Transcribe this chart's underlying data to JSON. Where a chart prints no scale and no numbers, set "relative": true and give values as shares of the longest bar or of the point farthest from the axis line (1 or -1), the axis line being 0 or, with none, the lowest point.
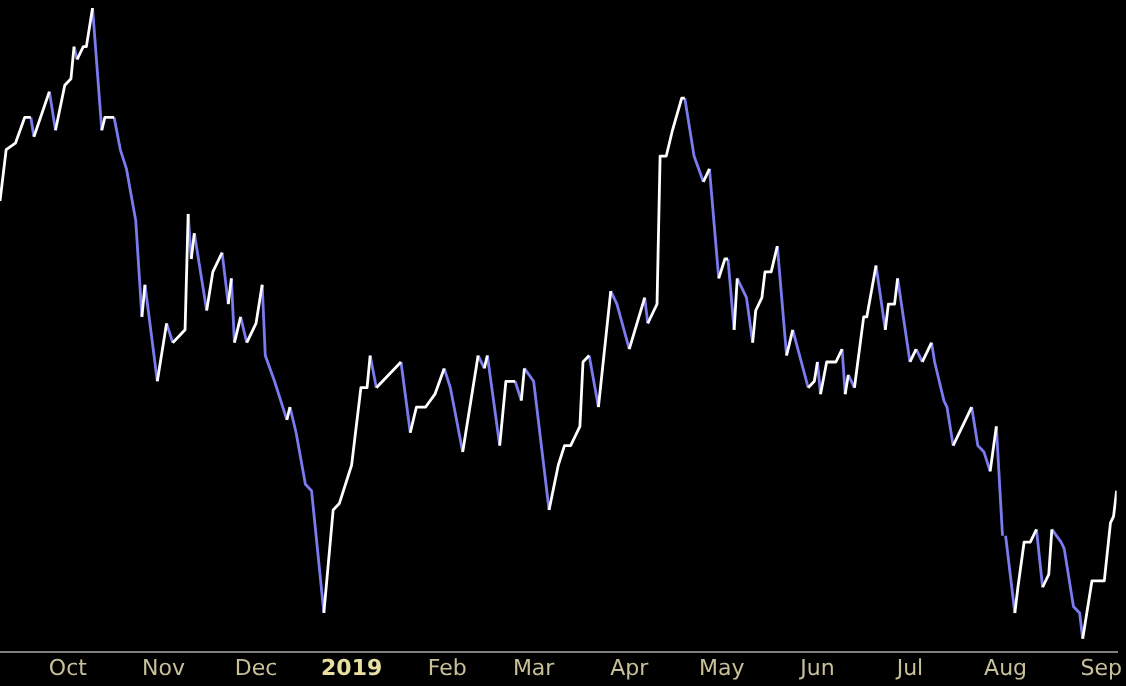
{
  "chart_data": {
    "type": "line",
    "relative": true,
    "legend": false,
    "grid": false,
    "marker": "none",
    "line_style": "solid",
    "xlim": [
      "2018-09-09",
      "2019-09-06"
    ],
    "xticks": [
      {
        "value": "2018-10-01",
        "label": "Oct"
      },
      {
        "value": "2018-11-01",
        "label": "Nov"
      },
      {
        "value": "2018-12-01",
        "label": "Dec"
      },
      {
        "value": "2019-01-01",
        "label": "2019"
      },
      {
        "value": "2019-02-01",
        "label": "Feb"
      },
      {
        "value": "2019-03-01",
        "label": "Mar"
      },
      {
        "value": "2019-04-01",
        "label": "Apr"
      },
      {
        "value": "2019-05-01",
        "label": "May"
      },
      {
        "value": "2019-06-01",
        "label": "Jun"
      },
      {
        "value": "2019-07-01",
        "label": "Jul"
      },
      {
        "value": "2019-08-01",
        "label": "Aug"
      },
      {
        "value": "2019-09-01",
        "label": "Sep"
      }
    ],
    "x": [
      "2018-09-09",
      "2018-09-11",
      "2018-09-14",
      "2018-09-17",
      "2018-09-19",
      "2018-09-20",
      "2018-09-25",
      "2018-09-27",
      "2018-09-30",
      "2018-10-02",
      "2018-10-03",
      "2018-10-04",
      "2018-10-06",
      "2018-10-07",
      "2018-10-09",
      "2018-10-12",
      "2018-10-13",
      "2018-10-16",
      "2018-10-18",
      "2018-10-20",
      "2018-10-23",
      "2018-10-25",
      "2018-10-26",
      "2018-10-30",
      "2018-11-02",
      "2018-11-04",
      "2018-11-08",
      "2018-11-09",
      "2018-11-10",
      "2018-11-11",
      "2018-11-15",
      "2018-11-17",
      "2018-11-20",
      "2018-11-22",
      "2018-11-23",
      "2018-11-24",
      "2018-11-26",
      "2018-11-28",
      "2018-12-01",
      "2018-12-03",
      "2018-12-04",
      "2018-12-07",
      "2018-12-11",
      "2018-12-12",
      "2018-12-14",
      "2018-12-17",
      "2018-12-19",
      "2018-12-23",
      "2018-12-26",
      "2018-12-28",
      "2019-01-01",
      "2019-01-04",
      "2019-01-06",
      "2019-01-07",
      "2019-01-09",
      "2019-01-17",
      "2019-01-20",
      "2019-01-22",
      "2019-01-25",
      "2019-01-28",
      "2019-01-31",
      "2019-02-02",
      "2019-02-06",
      "2019-02-11",
      "2019-02-13",
      "2019-02-14",
      "2019-02-18",
      "2019-02-20",
      "2019-02-23",
      "2019-02-25",
      "2019-02-26",
      "2019-03-01",
      "2019-03-06",
      "2019-03-09",
      "2019-03-11",
      "2019-03-13",
      "2019-03-16",
      "2019-03-17",
      "2019-03-19",
      "2019-03-22",
      "2019-03-26",
      "2019-03-28",
      "2019-04-01",
      "2019-04-06",
      "2019-04-07",
      "2019-04-09",
      "2019-04-10",
      "2019-04-11",
      "2019-04-13",
      "2019-04-15",
      "2019-04-18",
      "2019-04-19",
      "2019-04-22",
      "2019-04-25",
      "2019-04-27",
      "2019-04-30",
      "2019-05-02",
      "2019-05-03",
      "2019-05-05",
      "2019-05-06",
      "2019-05-09",
      "2019-05-11",
      "2019-05-12",
      "2019-05-14",
      "2019-05-15",
      "2019-05-17",
      "2019-05-19",
      "2019-05-22",
      "2019-05-24",
      "2019-05-29",
      "2019-05-31",
      "2019-06-01",
      "2019-06-02",
      "2019-06-04",
      "2019-06-07",
      "2019-06-09",
      "2019-06-10",
      "2019-06-11",
      "2019-06-13",
      "2019-06-16",
      "2019-06-17",
      "2019-06-20",
      "2019-06-23",
      "2019-06-24",
      "2019-06-26",
      "2019-06-27",
      "2019-07-01",
      "2019-07-03",
      "2019-07-05",
      "2019-07-08",
      "2019-07-09",
      "2019-07-12",
      "2019-07-13",
      "2019-07-15",
      "2019-07-21",
      "2019-07-23",
      "2019-07-25",
      "2019-07-27",
      "2019-07-29",
      "2019-07-31",
      "2019-08-01",
      "2019-08-04",
      "2019-08-05",
      "2019-08-07",
      "2019-08-09",
      "2019-08-11",
      "2019-08-13",
      "2019-08-15",
      "2019-08-16",
      "2019-08-19",
      "2019-08-20",
      "2019-08-23",
      "2019-08-25",
      "2019-08-26",
      "2019-08-29",
      "2019-08-31",
      "2019-09-02",
      "2019-09-04",
      "2019-09-05",
      "2019-09-06"
    ],
    "series": [
      {
        "color": "#ffffff",
        "values": [
          0.7,
          0.78,
          0.79,
          0.83,
          0.83,
          0.8,
          0.87,
          0.81,
          0.88,
          0.89,
          0.94,
          0.92,
          0.94,
          0.94,
          1.0,
          0.81,
          0.83,
          0.83,
          null,
          null,
          null,
          0.52,
          0.57,
          0.42,
          0.51,
          0.48,
          0.5,
          0.68,
          0.61,
          0.65,
          0.53,
          0.59,
          0.62,
          0.54,
          0.58,
          0.48,
          0.52,
          0.48,
          0.51,
          0.57,
          null,
          null,
          0.36,
          0.38,
          null,
          null,
          null,
          0.06,
          0.22,
          0.23,
          0.29,
          0.41,
          0.41,
          0.46,
          0.41,
          0.45,
          0.34,
          0.38,
          0.38,
          0.4,
          0.44,
          null,
          0.31,
          0.46,
          0.44,
          0.46,
          0.32,
          0.42,
          0.42,
          0.39,
          0.44,
          null,
          0.22,
          0.29,
          0.32,
          0.32,
          0.35,
          0.45,
          0.46,
          0.38,
          0.56,
          null,
          0.47,
          0.55,
          0.51,
          0.53,
          0.54,
          0.77,
          0.77,
          0.81,
          0.86,
          0.86,
          null,
          0.73,
          0.75,
          0.58,
          0.61,
          0.61,
          0.5,
          0.58,
          null,
          0.48,
          0.53,
          0.55,
          0.59,
          0.59,
          0.63,
          0.46,
          0.5,
          0.41,
          0.42,
          0.45,
          0.4,
          0.45,
          0.45,
          0.47,
          0.4,
          0.43,
          0.41,
          0.52,
          0.52,
          0.6,
          0.5,
          0.54,
          0.54,
          0.58,
          0.45,
          0.47,
          0.45,
          0.48,
          null,
          null,
          null,
          0.32,
          0.38,
          null,
          null,
          0.28,
          0.35,
          null,
          null,
          0.06,
          0.1,
          0.17,
          0.17,
          0.19,
          0.1,
          0.12,
          0.19,
          null,
          null,
          null,
          null,
          0.02,
          0.11,
          0.11,
          0.11,
          0.2,
          0.21,
          0.25
        ]
      },
      {
        "color": "#7b7bf0",
        "values": [
          null,
          null,
          null,
          null,
          0.83,
          0.8,
          0.87,
          0.81,
          null,
          null,
          0.94,
          0.92,
          null,
          null,
          1.0,
          0.81,
          null,
          0.83,
          0.78,
          0.75,
          0.67,
          0.52,
          0.57,
          0.42,
          0.51,
          0.48,
          null,
          0.68,
          0.61,
          0.65,
          0.53,
          null,
          0.62,
          0.54,
          0.58,
          0.48,
          0.52,
          0.48,
          null,
          0.57,
          0.46,
          0.42,
          0.36,
          0.38,
          0.34,
          0.26,
          0.25,
          0.06,
          null,
          null,
          null,
          null,
          null,
          0.46,
          0.41,
          0.45,
          0.34,
          null,
          null,
          null,
          0.44,
          0.41,
          0.31,
          0.46,
          0.44,
          0.46,
          0.32,
          null,
          0.42,
          0.39,
          0.44,
          0.42,
          0.22,
          null,
          null,
          null,
          null,
          null,
          0.46,
          0.38,
          0.56,
          0.54,
          0.47,
          0.55,
          0.51,
          null,
          null,
          null,
          null,
          null,
          null,
          0.86,
          0.77,
          0.73,
          0.75,
          0.58,
          null,
          0.61,
          0.5,
          0.58,
          0.55,
          0.48,
          null,
          null,
          null,
          null,
          0.63,
          0.46,
          0.5,
          0.41,
          null,
          0.45,
          0.4,
          null,
          null,
          0.47,
          0.4,
          0.43,
          0.41,
          null,
          null,
          0.6,
          0.5,
          null,
          null,
          0.58,
          0.45,
          0.47,
          0.45,
          0.48,
          0.45,
          0.39,
          0.38,
          0.32,
          0.38,
          0.32,
          0.31,
          0.28,
          0.35,
          0.18,
          0.18,
          0.06,
          null,
          null,
          null,
          0.19,
          0.1,
          null,
          0.19,
          0.17,
          0.16,
          0.07,
          0.06,
          0.02,
          null,
          null,
          null,
          null,
          null,
          null
        ]
      }
    ]
  }
}
